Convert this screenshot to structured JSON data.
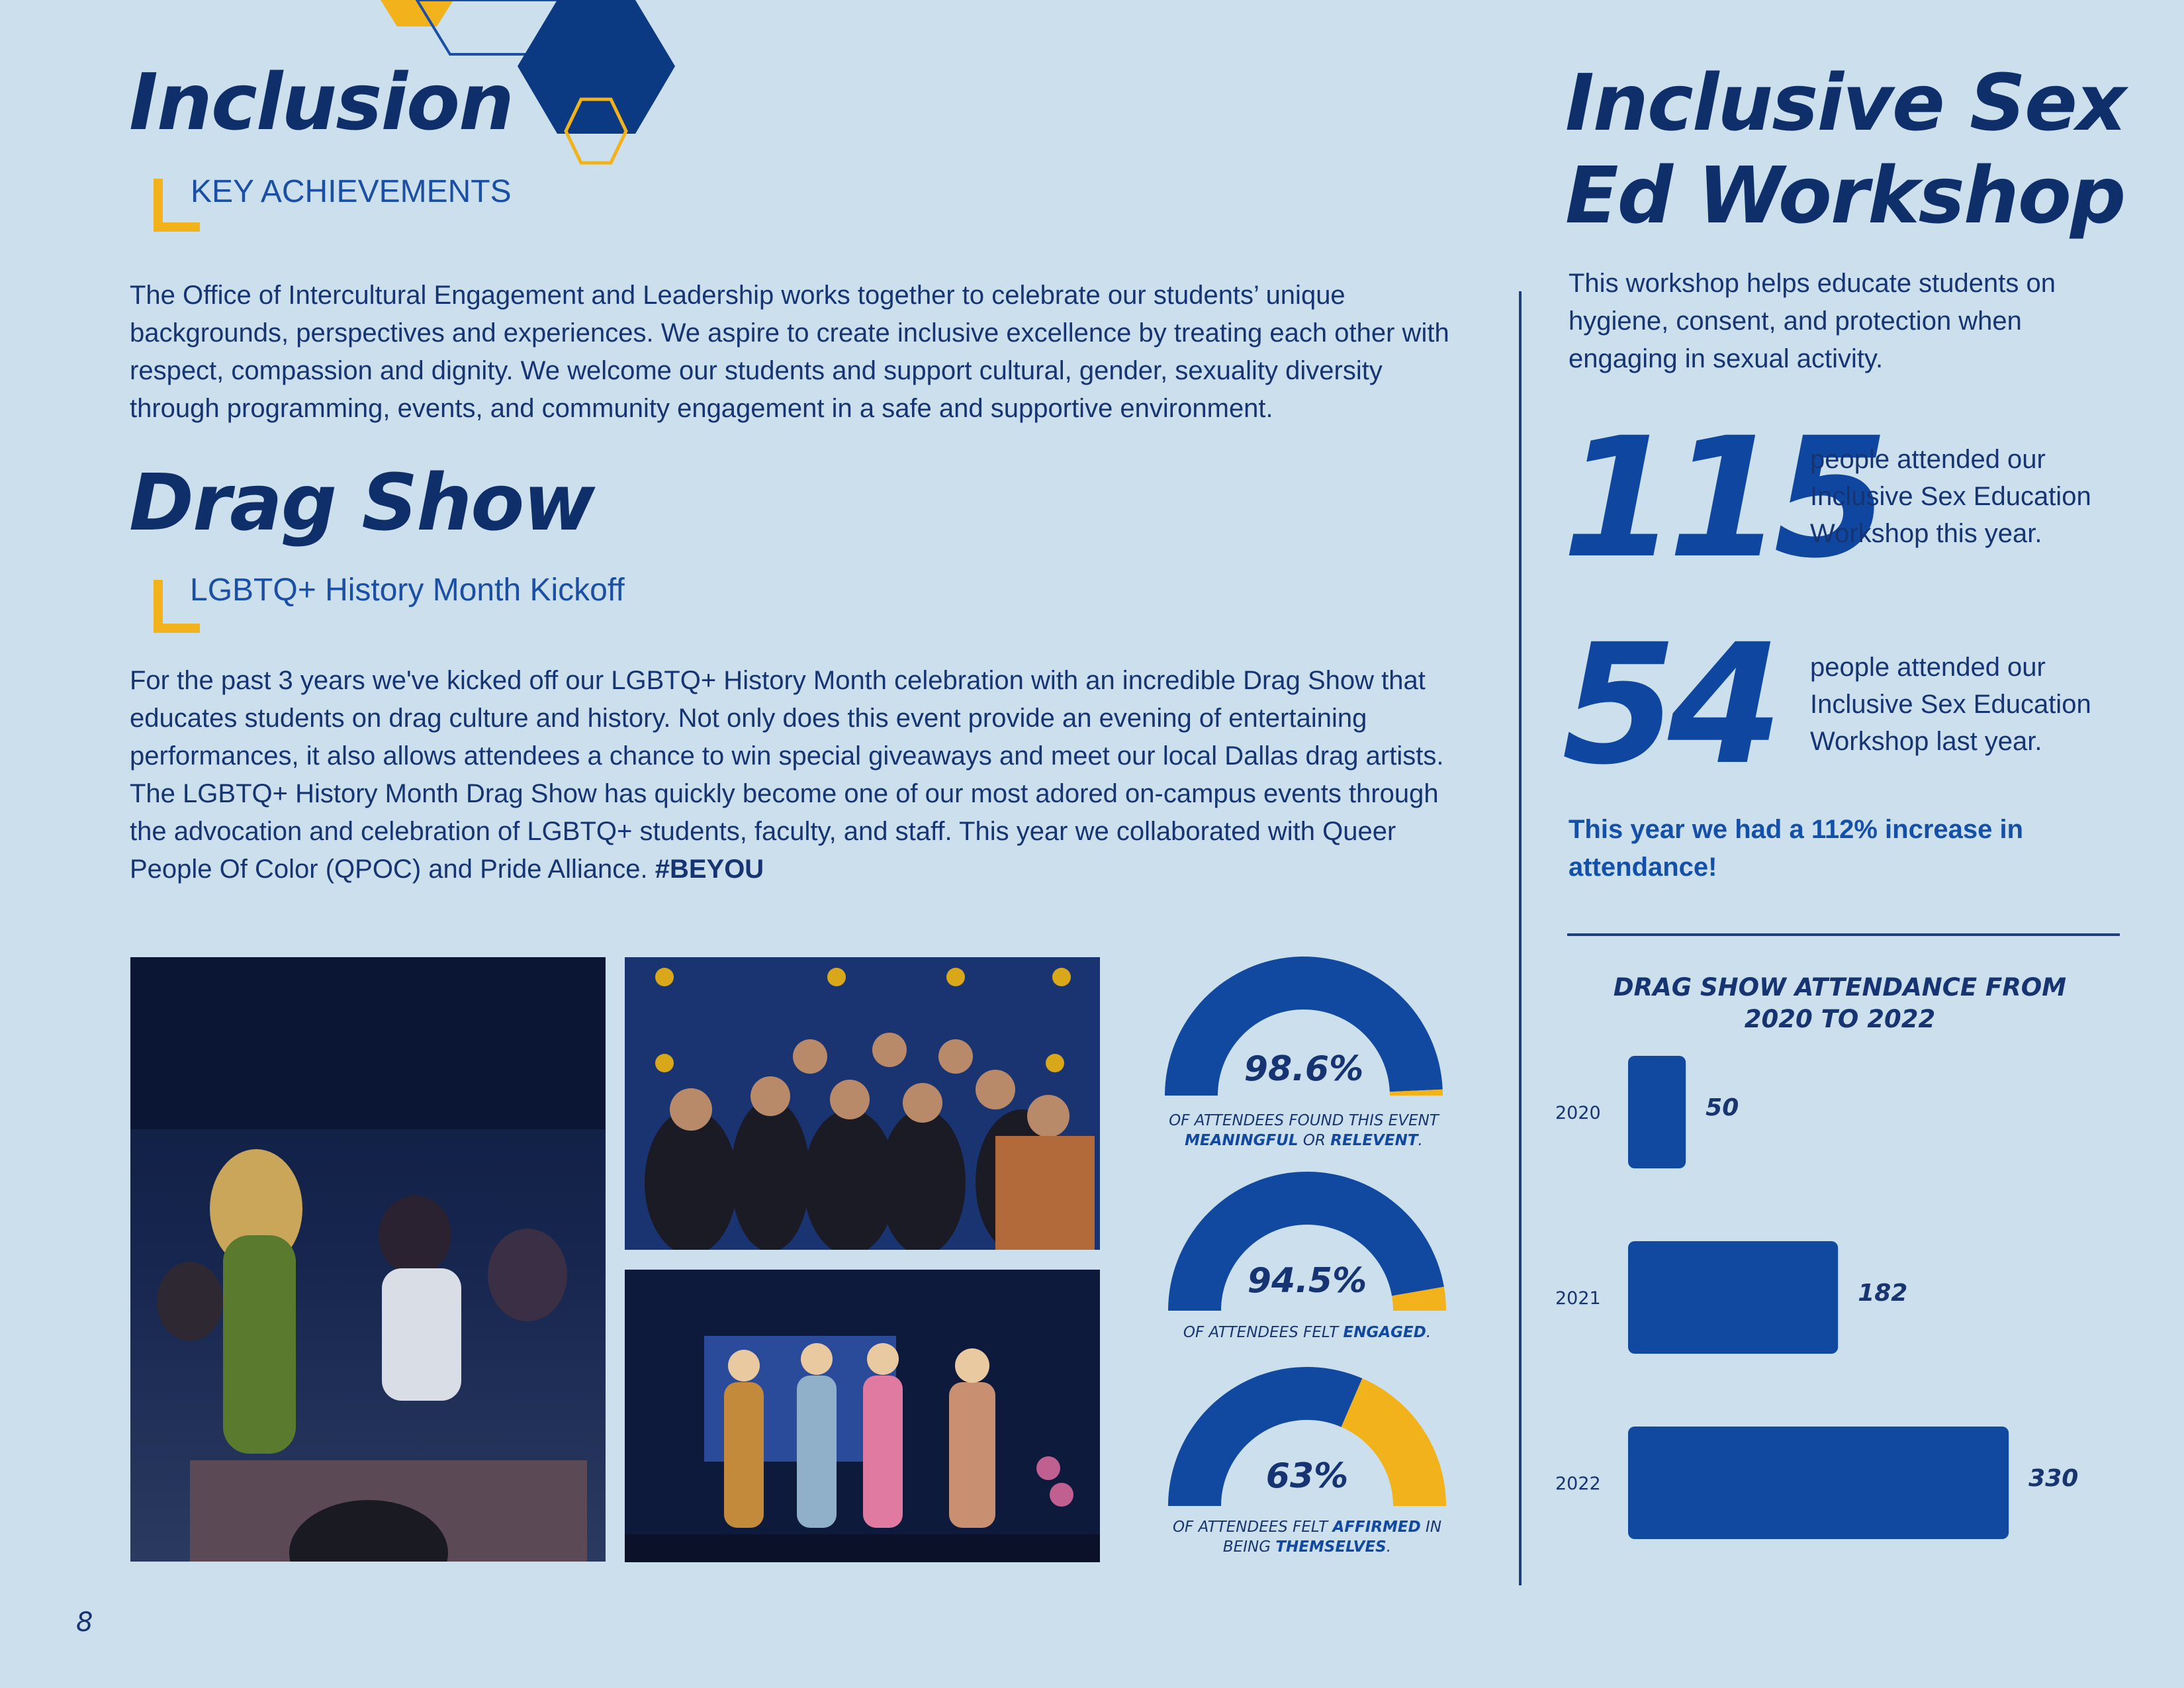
{
  "colors": {
    "background": "#cbdfec",
    "navy": "#0f2f6b",
    "blue": "#1249a0",
    "accent_gold": "#f1b21b"
  },
  "left": {
    "title": "Inclusion",
    "subheading": "KEY ACHIEVEMENTS",
    "intro": "The Office of Intercultural Engagement and Leadership works together to celebrate our students’ unique backgrounds, perspectives and experiences. We aspire to create inclusive excellence by treating each other with respect, compassion and dignity. We welcome our students and support cultural, gender, sexuality diversity through programming, events, and community engagement in a safe and supportive environment.",
    "drag_title": "Drag Show",
    "drag_subheading": "LGBTQ+ History Month Kickoff",
    "drag_body": "For the past 3 years we've kicked off our LGBTQ+ History Month celebration with an incredible Drag Show that educates students on drag culture and history. Not only does this event provide an evening of  entertaining performances, it also allows attendees a chance to win special giveaways and meet our local Dallas drag artists. The LGBTQ+ History Month Drag Show has quickly become one of our most adored on-campus events through the advocation and celebration of LGBTQ+ students, faculty, and staff. This year we collaborated with Queer People Of Color (QPOC) and Pride Alliance.",
    "drag_hashtag": "#BEYOU"
  },
  "gauges": [
    {
      "value_label": "98.6%",
      "value": 98.6,
      "caption_pre": "OF ATTENDEES FOUND THIS EVENT",
      "caption_b1": "MEANINGFUL",
      "caption_mid": "OR",
      "caption_b2": "RELEVENT",
      "caption_end": "."
    },
    {
      "value_label": "94.5%",
      "value": 94.5,
      "caption_pre": "OF ATTENDEES FELT",
      "caption_b1": "ENGAGED",
      "caption_end": "."
    },
    {
      "value_label": "63%",
      "value": 63,
      "caption_pre": "OF ATTENDEES FELT",
      "caption_b1": "AFFIRMED",
      "caption_mid": "IN BEING",
      "caption_b2": "THEMSELVES",
      "caption_end": "."
    }
  ],
  "right": {
    "title_line1": "Inclusive Sex",
    "title_line2": "Ed Workshop",
    "intro": "This workshop helps educate students on hygiene, consent, and protection when engaging in sexual activity.",
    "stat1_number": "115",
    "stat1_text": "people attended our Inclusive Sex Education Workshop this year.",
    "stat2_number": "54",
    "stat2_text": "people attended our Inclusive Sex Education Workshop last year.",
    "highlight": "This year we had a 112% increase in attendance!"
  },
  "chart_data": {
    "type": "bar",
    "orientation": "horizontal",
    "title": "DRAG SHOW ATTENDANCE FROM 2020 TO 2022",
    "categories": [
      "2020",
      "2021",
      "2022"
    ],
    "values": [
      50,
      182,
      330
    ],
    "color": "#1249a0"
  },
  "footer": {
    "page_number": "8"
  }
}
